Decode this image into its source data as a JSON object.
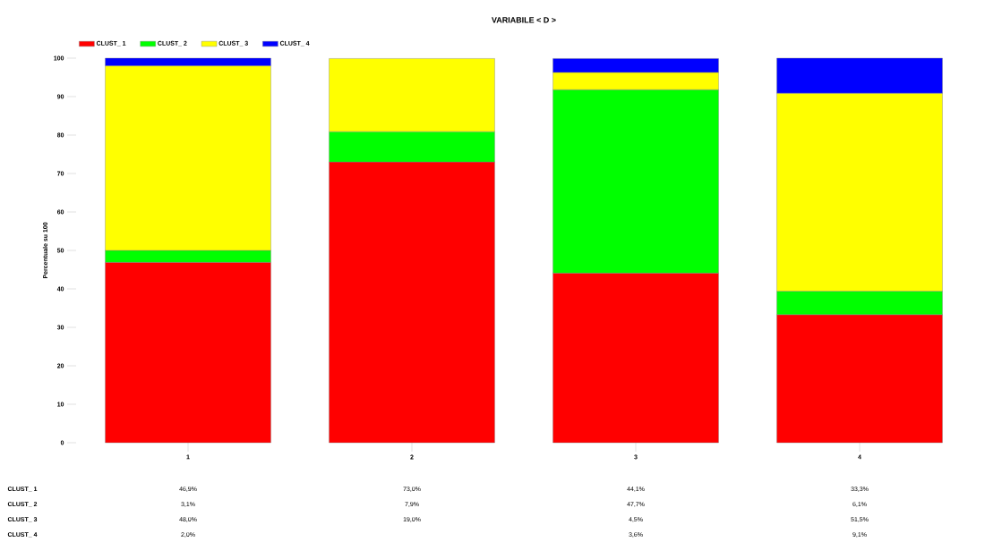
{
  "chart_data": {
    "type": "bar",
    "stacked": true,
    "title": "VARIABILE < D >",
    "ylabel": "Percentuale su 100",
    "categories": [
      "1",
      "2",
      "3",
      "4"
    ],
    "ylim": [
      0,
      100
    ],
    "yticks": [
      0,
      10,
      20,
      30,
      40,
      50,
      60,
      70,
      80,
      90,
      100
    ],
    "legend": "top left",
    "series": [
      {
        "name": "CLUST_ 1",
        "color": "#ff0000",
        "values": [
          46.9,
          73.0,
          44.1,
          33.3
        ],
        "value_labels": [
          "46,9%",
          "73,0%",
          "44,1%",
          "33,3%"
        ]
      },
      {
        "name": "CLUST_ 2",
        "color": "#00ff00",
        "values": [
          3.1,
          7.9,
          47.7,
          6.1
        ],
        "value_labels": [
          "3,1%",
          "7,9%",
          "47,7%",
          "6,1%"
        ]
      },
      {
        "name": "CLUST_ 3",
        "color": "#ffff00",
        "values": [
          48.0,
          19.0,
          4.5,
          51.5
        ],
        "value_labels": [
          "48,0%",
          "19,0%",
          "4,5%",
          "51,5%"
        ]
      },
      {
        "name": "CLUST_ 4",
        "color": "#0000ff",
        "values": [
          2.0,
          null,
          3.6,
          9.1
        ],
        "value_labels": [
          "2,0%",
          null,
          "3,6%",
          "9,1%"
        ]
      }
    ]
  }
}
